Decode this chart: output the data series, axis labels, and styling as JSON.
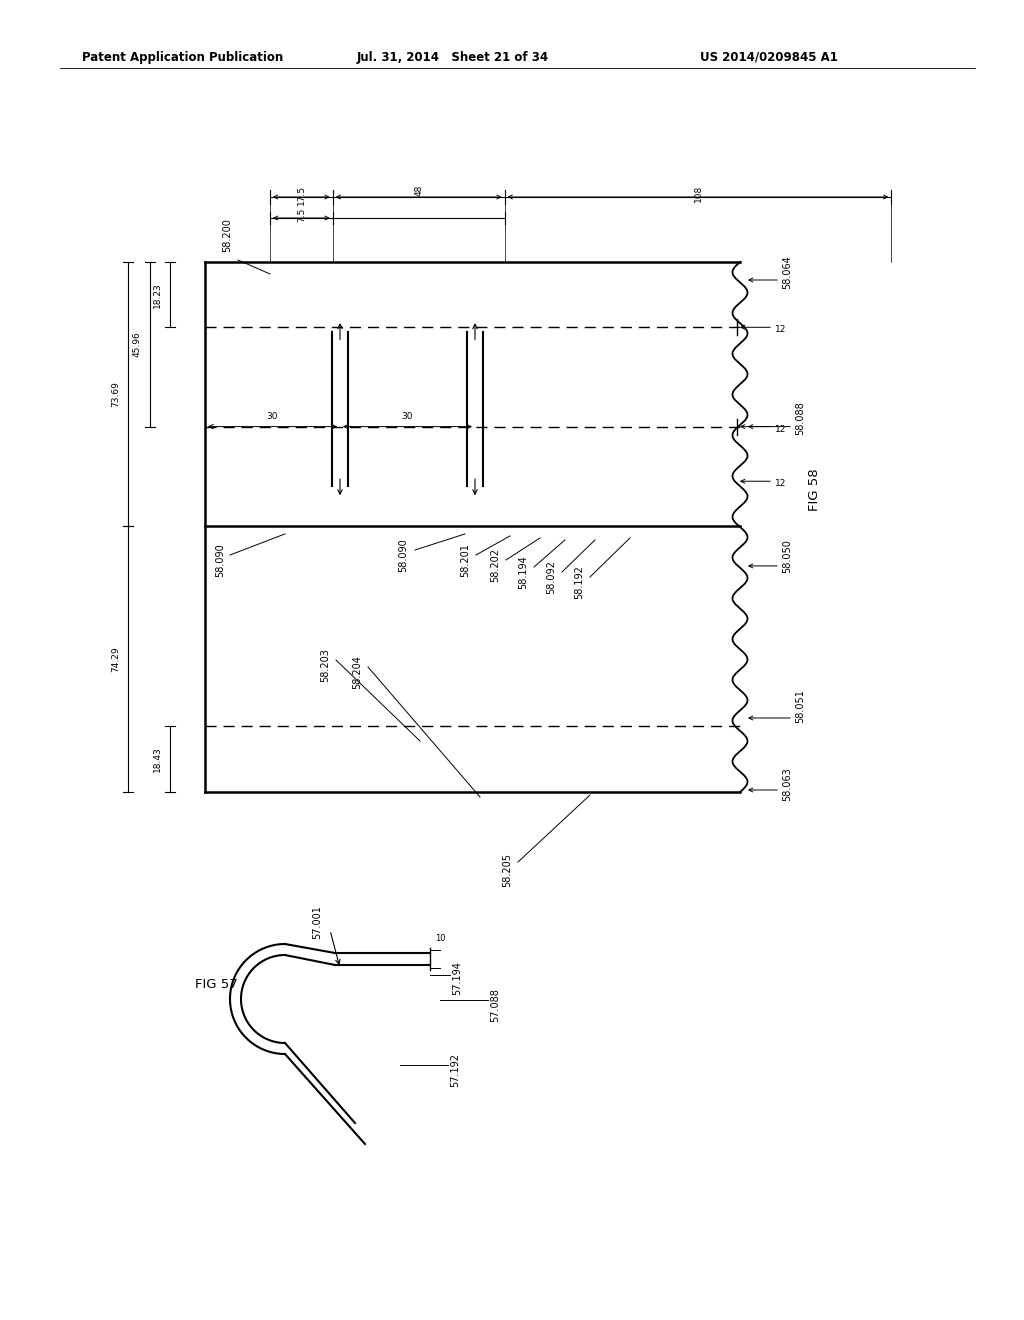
{
  "bg_color": "#ffffff",
  "header_left": "Patent Application Publication",
  "header_mid": "Jul. 31, 2014   Sheet 21 of 34",
  "header_right": "US 2014/0209845 A1",
  "fig58_title": "FIG 58",
  "fig57_title": "FIG 57",
  "ref_58_200": "58.200",
  "ref_58_064": "58.064",
  "ref_58_088": "58.088",
  "ref_58_050": "58.050",
  "ref_58_051": "58.051",
  "ref_58_063": "58.063",
  "ref_58_090a": "58.090",
  "ref_58_090b": "58.090",
  "ref_58_201": "58.201",
  "ref_58_202": "58.202",
  "ref_58_194": "58.194",
  "ref_58_092": "58.092",
  "ref_58_192": "58.192",
  "ref_58_203": "58.203",
  "ref_58_204": "58.204",
  "ref_58_205": "58.205",
  "ref_57_001": "57.001",
  "ref_57_194": "57.194",
  "ref_57_088": "57.088",
  "ref_57_192": "57.192",
  "dim_73_69": "73.69",
  "dim_45_96": "45.96",
  "dim_18_23": "18.23",
  "dim_74_29": "74.29",
  "dim_18_43": "18.43",
  "dim_17_5": "17.5",
  "dim_48": "48",
  "dim_108": "108",
  "dim_7_5": "7.5",
  "dim_30": "30",
  "dim_12": "12",
  "dim_10": "10"
}
